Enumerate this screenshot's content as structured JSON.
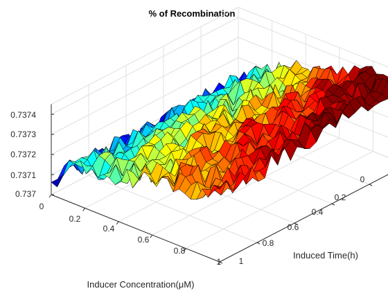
{
  "chart_data": {
    "type": "surface",
    "title": "% of Recombination",
    "xlabel": "Inducer Concentration(μM)",
    "ylabel": "Induced Time(h)",
    "zlabel": "",
    "xlim": [
      0,
      1
    ],
    "ylim": [
      0,
      1
    ],
    "zlim": [
      0.737,
      0.73745
    ],
    "xticks": [
      "0",
      "0.2",
      "0.4",
      "0.6",
      "0.8",
      "1"
    ],
    "yticks": [
      "0",
      "0.2",
      "0.4",
      "0.6",
      "0.8",
      "1"
    ],
    "zticks": [
      "0.737",
      "0.7371",
      "0.7372",
      "0.7373",
      "0.7374"
    ],
    "grid": true,
    "colormap": "jet",
    "trend": "noisy surface rising from ~0.7371 at low concentration / late induced time to ~0.7374 at high concentration / early induced time",
    "grid_points": 30
  },
  "colors": {
    "axis": "#262626",
    "grid": "#e0e0e0",
    "mesh_edge": "#000000"
  }
}
